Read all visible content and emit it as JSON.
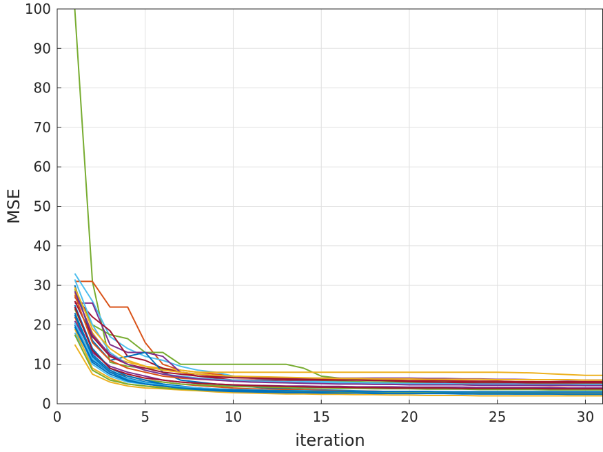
{
  "chart_data": {
    "type": "line",
    "title": "",
    "xlabel": "iteration",
    "ylabel": "MSE",
    "xlim": [
      0,
      31
    ],
    "ylim": [
      0,
      100
    ],
    "x_ticks": [
      0,
      5,
      10,
      15,
      20,
      25,
      30
    ],
    "y_ticks": [
      0,
      10,
      20,
      30,
      40,
      50,
      60,
      70,
      80,
      90,
      100
    ],
    "grid": true,
    "legend": "none",
    "x": [
      1,
      2,
      3,
      4,
      5,
      6,
      7,
      8,
      9,
      10,
      11,
      12,
      13,
      14,
      15,
      16,
      17,
      18,
      19,
      20,
      21,
      22,
      23,
      24,
      25,
      26,
      27,
      28,
      29,
      30,
      31
    ],
    "series": [
      {
        "color": "#77AC30",
        "values": [
          100.0,
          31.0,
          10.5,
          9.5,
          9.0,
          8.8,
          8.0,
          7.5,
          7.0,
          6.8,
          6.5,
          6.3,
          6.0,
          5.9,
          5.8,
          5.7,
          5.6,
          5.5,
          5.5,
          5.4,
          5.4,
          5.3,
          5.3,
          5.2,
          5.2,
          5.1,
          5.1,
          5.0,
          5.0,
          5.0,
          5.0
        ]
      },
      {
        "color": "#D95319",
        "values": [
          31.0,
          31.0,
          24.5,
          24.5,
          15.5,
          10.0,
          8.5,
          8.0,
          7.5,
          7.0,
          6.8,
          6.6,
          6.5,
          6.4,
          6.3,
          6.2,
          6.1,
          6.0,
          6.0,
          5.9,
          5.9,
          5.8,
          5.8,
          5.7,
          5.7,
          5.6,
          5.6,
          5.5,
          5.5,
          5.5,
          5.5
        ]
      },
      {
        "color": "#4DBEEE",
        "values": [
          33.0,
          26.0,
          17.0,
          14.0,
          12.0,
          11.0,
          9.5,
          8.5,
          8.0,
          7.0,
          6.5,
          6.2,
          6.0,
          5.8,
          5.6,
          5.5,
          5.4,
          5.3,
          5.2,
          5.1,
          5.0,
          5.0,
          4.9,
          4.9,
          4.8,
          4.8,
          4.7,
          4.7,
          4.6,
          4.6,
          4.6
        ]
      },
      {
        "color": "#77AC30",
        "values": [
          29.0,
          20.0,
          17.5,
          16.5,
          13.0,
          13.0,
          10.0,
          10.0,
          10.0,
          10.0,
          10.0,
          10.0,
          10.0,
          9.0,
          7.0,
          6.5,
          6.2,
          6.0,
          5.9,
          5.8,
          5.7,
          5.6,
          5.5,
          5.5,
          5.4,
          5.4,
          5.3,
          5.3,
          5.2,
          5.2,
          5.2
        ]
      },
      {
        "color": "#EDB120",
        "values": [
          28.0,
          18.0,
          12.0,
          10.5,
          9.5,
          9.0,
          8.5,
          8.0,
          8.0,
          8.0,
          8.0,
          8.0,
          8.0,
          8.0,
          8.0,
          8.0,
          8.0,
          8.0,
          8.0,
          8.0,
          8.0,
          8.0,
          8.0,
          8.0,
          8.0,
          7.9,
          7.8,
          7.6,
          7.4,
          7.2,
          7.2
        ]
      },
      {
        "color": "#7E2F8E",
        "values": [
          25.5,
          25.5,
          15.0,
          13.0,
          13.0,
          12.0,
          8.0,
          7.5,
          7.0,
          7.0,
          6.8,
          6.6,
          6.5,
          6.5,
          6.5,
          6.5,
          6.5,
          6.5,
          6.5,
          6.5,
          6.4,
          6.4,
          6.3,
          6.3,
          6.2,
          6.2,
          6.1,
          6.1,
          6.0,
          6.0,
          6.0
        ]
      },
      {
        "color": "#A2142F",
        "values": [
          27.0,
          22.0,
          18.5,
          12.0,
          11.0,
          9.0,
          8.0,
          7.0,
          6.5,
          6.0,
          6.0,
          6.0,
          6.0,
          6.0,
          6.0,
          6.0,
          6.0,
          6.0,
          5.8,
          5.6,
          5.5,
          5.4,
          5.4,
          5.3,
          5.3,
          5.3,
          5.3,
          5.3,
          5.3,
          5.3,
          5.3
        ]
      },
      {
        "color": "#0072BD",
        "values": [
          30.0,
          16.0,
          11.0,
          12.0,
          13.0,
          8.0,
          6.0,
          5.5,
          5.0,
          4.5,
          4.3,
          4.0,
          3.8,
          3.6,
          3.5,
          3.4,
          3.3,
          3.2,
          3.1,
          3.0,
          3.0,
          3.0,
          3.0,
          3.0,
          3.0,
          3.0,
          3.0,
          3.0,
          3.0,
          3.0,
          3.0
        ]
      },
      {
        "color": "#EDB120",
        "values": [
          15.0,
          7.5,
          5.5,
          4.5,
          4.0,
          3.8,
          3.5,
          3.3,
          3.0,
          2.8,
          2.7,
          2.6,
          2.5,
          2.5,
          2.4,
          2.4,
          2.3,
          2.3,
          2.2,
          2.2,
          2.1,
          2.1,
          2.1,
          2.0,
          2.0,
          2.0,
          2.0,
          2.0,
          2.0,
          2.0,
          2.0
        ]
      },
      {
        "color": "#D95319",
        "values": [
          22.0,
          12.0,
          8.0,
          7.0,
          6.0,
          5.5,
          5.0,
          4.6,
          4.3,
          4.0,
          3.8,
          3.7,
          3.6,
          3.5,
          3.4,
          3.3,
          3.2,
          3.2,
          3.1,
          3.1,
          3.0,
          3.0,
          3.0,
          2.9,
          2.9,
          2.9,
          2.8,
          2.8,
          2.8,
          2.8,
          2.8
        ]
      },
      {
        "color": "#0072BD",
        "values": [
          20.0,
          11.0,
          8.0,
          6.5,
          5.5,
          5.0,
          4.5,
          4.0,
          3.7,
          3.5,
          3.3,
          3.2,
          3.1,
          3.0,
          3.0,
          2.9,
          2.9,
          2.8,
          2.8,
          2.7,
          2.7,
          2.7,
          2.6,
          2.6,
          2.6,
          2.5,
          2.5,
          2.5,
          2.4,
          2.4,
          2.4
        ]
      },
      {
        "color": "#4DBEEE",
        "values": [
          18.0,
          10.0,
          7.0,
          5.5,
          5.0,
          4.5,
          4.0,
          3.8,
          3.6,
          3.4,
          3.3,
          3.2,
          3.1,
          3.0,
          3.0,
          3.0,
          2.9,
          2.9,
          2.9,
          2.8,
          2.8,
          2.8,
          2.8,
          2.7,
          2.7,
          2.7,
          2.7,
          2.7,
          2.6,
          2.6,
          2.6
        ]
      },
      {
        "color": "#77AC30",
        "values": [
          24.0,
          14.0,
          9.0,
          7.0,
          6.0,
          5.5,
          5.0,
          4.8,
          4.6,
          4.4,
          4.3,
          4.2,
          4.1,
          4.0,
          4.0,
          3.9,
          3.9,
          3.8,
          3.8,
          3.8,
          3.7,
          3.7,
          3.7,
          3.6,
          3.6,
          3.6,
          3.6,
          3.5,
          3.5,
          3.5,
          3.5
        ]
      },
      {
        "color": "#A2142F",
        "values": [
          26.0,
          17.0,
          12.0,
          10.0,
          9.0,
          8.0,
          7.5,
          7.0,
          6.8,
          6.6,
          6.5,
          6.4,
          6.3,
          6.2,
          6.1,
          6.0,
          6.0,
          5.9,
          5.9,
          5.8,
          5.8,
          5.8,
          5.7,
          5.7,
          5.7,
          5.6,
          5.6,
          5.6,
          5.6,
          5.6,
          5.6
        ]
      },
      {
        "color": "#7E2F8E",
        "values": [
          21.0,
          13.0,
          9.5,
          8.0,
          7.0,
          6.0,
          5.5,
          5.2,
          5.0,
          4.8,
          4.7,
          4.6,
          4.5,
          4.5,
          4.4,
          4.4,
          4.3,
          4.3,
          4.3,
          4.2,
          4.2,
          4.2,
          4.2,
          4.1,
          4.1,
          4.1,
          4.1,
          4.1,
          4.0,
          4.0,
          4.0
        ]
      },
      {
        "color": "#EDB120",
        "values": [
          19.0,
          9.0,
          6.5,
          5.0,
          4.5,
          4.2,
          4.0,
          3.8,
          3.6,
          3.5,
          3.4,
          3.3,
          3.2,
          3.2,
          3.1,
          3.1,
          3.0,
          3.0,
          3.0,
          3.0,
          2.9,
          2.9,
          2.9,
          2.9,
          2.9,
          2.8,
          2.8,
          2.8,
          2.8,
          2.8,
          2.8
        ]
      },
      {
        "color": "#0072BD",
        "values": [
          23.0,
          12.5,
          8.5,
          6.5,
          5.5,
          4.8,
          4.3,
          4.0,
          3.8,
          3.6,
          3.5,
          3.4,
          3.3,
          3.3,
          3.2,
          3.2,
          3.2,
          3.1,
          3.1,
          3.1,
          3.1,
          3.0,
          3.0,
          3.0,
          3.0,
          3.0,
          3.0,
          3.0,
          3.0,
          3.0,
          3.0
        ]
      },
      {
        "color": "#D95319",
        "values": [
          27.5,
          15.5,
          11.0,
          9.0,
          8.0,
          7.0,
          6.5,
          6.2,
          6.0,
          5.8,
          5.6,
          5.5,
          5.4,
          5.3,
          5.2,
          5.1,
          5.0,
          5.0,
          4.9,
          4.9,
          4.8,
          4.8,
          4.8,
          4.7,
          4.7,
          4.7,
          4.7,
          4.6,
          4.6,
          4.6,
          4.6
        ]
      },
      {
        "color": "#4DBEEE",
        "values": [
          31.5,
          20.0,
          13.0,
          10.0,
          8.5,
          7.5,
          7.0,
          6.5,
          6.2,
          6.0,
          5.8,
          5.7,
          5.6,
          5.5,
          5.4,
          5.3,
          5.3,
          5.2,
          5.2,
          5.1,
          5.1,
          5.1,
          5.0,
          5.0,
          5.0,
          5.0,
          4.9,
          4.9,
          4.9,
          4.9,
          4.9
        ]
      },
      {
        "color": "#77AC30",
        "values": [
          17.5,
          8.5,
          6.0,
          5.0,
          4.5,
          4.0,
          3.7,
          3.5,
          3.3,
          3.2,
          3.1,
          3.0,
          3.0,
          2.9,
          2.9,
          2.8,
          2.8,
          2.8,
          2.7,
          2.7,
          2.7,
          2.7,
          2.6,
          2.6,
          2.6,
          2.6,
          2.6,
          2.6,
          2.5,
          2.5,
          2.5
        ]
      },
      {
        "color": "#0072BD",
        "values": [
          25.0,
          14.0,
          9.0,
          7.0,
          6.0,
          5.0,
          4.2,
          3.8,
          3.5,
          3.3,
          3.1,
          3.0,
          2.9,
          2.8,
          2.8,
          2.7,
          2.7,
          2.7,
          2.6,
          2.6,
          2.6,
          2.6,
          2.6,
          2.5,
          2.5,
          2.5,
          2.5,
          2.5,
          2.5,
          2.5,
          2.5
        ]
      },
      {
        "color": "#EDB120",
        "values": [
          29.5,
          19.0,
          14.0,
          11.0,
          9.5,
          8.5,
          8.0,
          7.5,
          7.2,
          7.0,
          6.9,
          6.8,
          6.7,
          6.6,
          6.5,
          6.4,
          6.4,
          6.3,
          6.3,
          6.3,
          6.2,
          6.2,
          6.2,
          6.2,
          6.1,
          6.1,
          6.1,
          6.1,
          6.1,
          6.0,
          6.0
        ]
      },
      {
        "color": "#A2142F",
        "values": [
          24.5,
          13.5,
          9.0,
          7.5,
          6.5,
          6.0,
          5.5,
          5.2,
          5.0,
          4.8,
          4.6,
          4.5,
          4.4,
          4.3,
          4.2,
          4.2,
          4.1,
          4.1,
          4.0,
          4.0,
          4.0,
          4.0,
          3.9,
          3.9,
          3.9,
          3.9,
          3.9,
          3.8,
          3.8,
          3.8,
          3.8
        ]
      },
      {
        "color": "#7E2F8E",
        "values": [
          28.5,
          17.5,
          12.5,
          10.0,
          8.5,
          7.5,
          6.8,
          6.3,
          6.0,
          5.7,
          5.5,
          5.4,
          5.3,
          5.2,
          5.1,
          5.0,
          5.0,
          4.9,
          4.9,
          4.8,
          4.8,
          4.8,
          4.8,
          4.7,
          4.7,
          4.7,
          4.7,
          4.7,
          4.7,
          4.6,
          4.6
        ]
      },
      {
        "color": "#4DBEEE",
        "values": [
          20.5,
          11.5,
          8.0,
          6.3,
          5.3,
          4.7,
          4.3,
          4.0,
          3.8,
          3.6,
          3.5,
          3.4,
          3.3,
          3.3,
          3.2,
          3.2,
          3.2,
          3.1,
          3.1,
          3.1,
          3.1,
          3.1,
          3.0,
          3.0,
          3.0,
          3.0,
          3.0,
          3.0,
          3.0,
          3.0,
          3.0
        ]
      },
      {
        "color": "#0072BD",
        "values": [
          22.5,
          12.0,
          8.0,
          6.0,
          5.0,
          4.5,
          4.0,
          3.8,
          3.6,
          3.5,
          3.4,
          3.3,
          3.3,
          3.2,
          3.2,
          3.2,
          3.1,
          3.1,
          3.1,
          3.1,
          3.1,
          3.0,
          3.0,
          3.0,
          3.0,
          3.0,
          3.0,
          3.0,
          3.0,
          3.0,
          3.0
        ]
      },
      {
        "color": "#0072BD",
        "values": [
          19.5,
          10.5,
          7.5,
          5.8,
          5.0,
          4.5,
          4.0,
          3.6,
          3.3,
          3.1,
          3.0,
          2.9,
          2.8,
          2.8,
          2.7,
          2.7,
          2.7,
          2.6,
          2.6,
          2.6,
          2.6,
          2.6,
          2.5,
          2.5,
          2.5,
          2.5,
          2.5,
          2.5,
          2.5,
          2.5,
          2.5
        ]
      }
    ]
  }
}
